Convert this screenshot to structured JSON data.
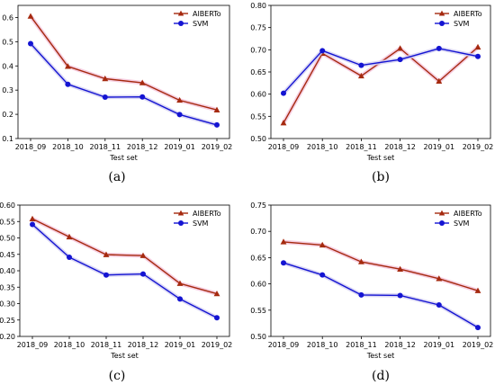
{
  "colors": {
    "alberto": "#a52a0f",
    "alberto_glow": "#f4c6dc",
    "svm": "#1414d2",
    "svm_glow": "#d4d0f2",
    "axis": "#000000"
  },
  "chart_data": [
    {
      "type": "line",
      "panel_label": "(a)",
      "categories": [
        "2018_09",
        "2018_10",
        "2018_11",
        "2018_12",
        "2019_01",
        "2019_02"
      ],
      "xlabel": "Test set",
      "ylabel": "",
      "ylim": [
        0.1,
        0.65
      ],
      "yticks": [
        0.1,
        0.2,
        0.3,
        0.4,
        0.5,
        0.6
      ],
      "ytick_labels": [
        "0.1",
        "0.2",
        "0.3",
        "0.4",
        "0.5",
        "0.6"
      ],
      "grid": false,
      "legend": "top-right",
      "series": [
        {
          "name": "AlBERTo",
          "marker": "triangle",
          "values": [
            0.605,
            0.398,
            0.347,
            0.33,
            0.258,
            0.218
          ]
        },
        {
          "name": "SVM",
          "marker": "circle",
          "values": [
            0.492,
            0.324,
            0.271,
            0.272,
            0.199,
            0.156
          ]
        }
      ]
    },
    {
      "type": "line",
      "panel_label": "(b)",
      "categories": [
        "2018_09",
        "2018_10",
        "2018_11",
        "2018_12",
        "2019_01",
        "2019_02"
      ],
      "xlabel": "Test set",
      "ylabel": "",
      "ylim": [
        0.5,
        0.8
      ],
      "yticks": [
        0.5,
        0.55,
        0.6,
        0.65,
        0.7,
        0.75,
        0.8
      ],
      "ytick_labels": [
        "0.50",
        "0.55",
        "0.60",
        "0.65",
        "0.70",
        "0.75",
        "0.80"
      ],
      "grid": false,
      "legend": "top-right",
      "series": [
        {
          "name": "AlBERTo",
          "marker": "triangle",
          "values": [
            0.535,
            0.692,
            0.641,
            0.703,
            0.629,
            0.706
          ]
        },
        {
          "name": "SVM",
          "marker": "circle",
          "values": [
            0.602,
            0.698,
            0.665,
            0.678,
            0.703,
            0.685
          ]
        }
      ]
    },
    {
      "type": "line",
      "panel_label": "(c)",
      "categories": [
        "2018_09",
        "2018_10",
        "2018_11",
        "2018_12",
        "2019_01",
        "2019_02"
      ],
      "xlabel": "Test set",
      "ylabel": "",
      "ylim": [
        0.2,
        0.6
      ],
      "yticks": [
        0.2,
        0.25,
        0.3,
        0.35,
        0.4,
        0.45,
        0.5,
        0.55,
        0.6
      ],
      "ytick_labels": [
        "0.20",
        "0.25",
        "0.30",
        "0.35",
        "0.40",
        "0.45",
        "0.50",
        "0.55",
        "0.60"
      ],
      "grid": false,
      "legend": "top-right",
      "series": [
        {
          "name": "AlBERTo",
          "marker": "triangle",
          "values": [
            0.558,
            0.503,
            0.449,
            0.446,
            0.361,
            0.33
          ]
        },
        {
          "name": "SVM",
          "marker": "circle",
          "values": [
            0.541,
            0.441,
            0.387,
            0.39,
            0.314,
            0.257
          ]
        }
      ]
    },
    {
      "type": "line",
      "panel_label": "(d)",
      "categories": [
        "2018_09",
        "2018_10",
        "2018_11",
        "2018_12",
        "2019_01",
        "2019_02"
      ],
      "xlabel": "Test set",
      "ylabel": "",
      "ylim": [
        0.5,
        0.75
      ],
      "yticks": [
        0.5,
        0.55,
        0.6,
        0.65,
        0.7,
        0.75
      ],
      "ytick_labels": [
        "0.50",
        "0.55",
        "0.60",
        "0.65",
        "0.70",
        "0.75"
      ],
      "grid": false,
      "legend": "top-right",
      "series": [
        {
          "name": "AlBERTo",
          "marker": "triangle",
          "values": [
            0.68,
            0.674,
            0.642,
            0.628,
            0.61,
            0.587
          ]
        },
        {
          "name": "SVM",
          "marker": "circle",
          "values": [
            0.64,
            0.617,
            0.579,
            0.578,
            0.56,
            0.517
          ]
        }
      ]
    }
  ]
}
